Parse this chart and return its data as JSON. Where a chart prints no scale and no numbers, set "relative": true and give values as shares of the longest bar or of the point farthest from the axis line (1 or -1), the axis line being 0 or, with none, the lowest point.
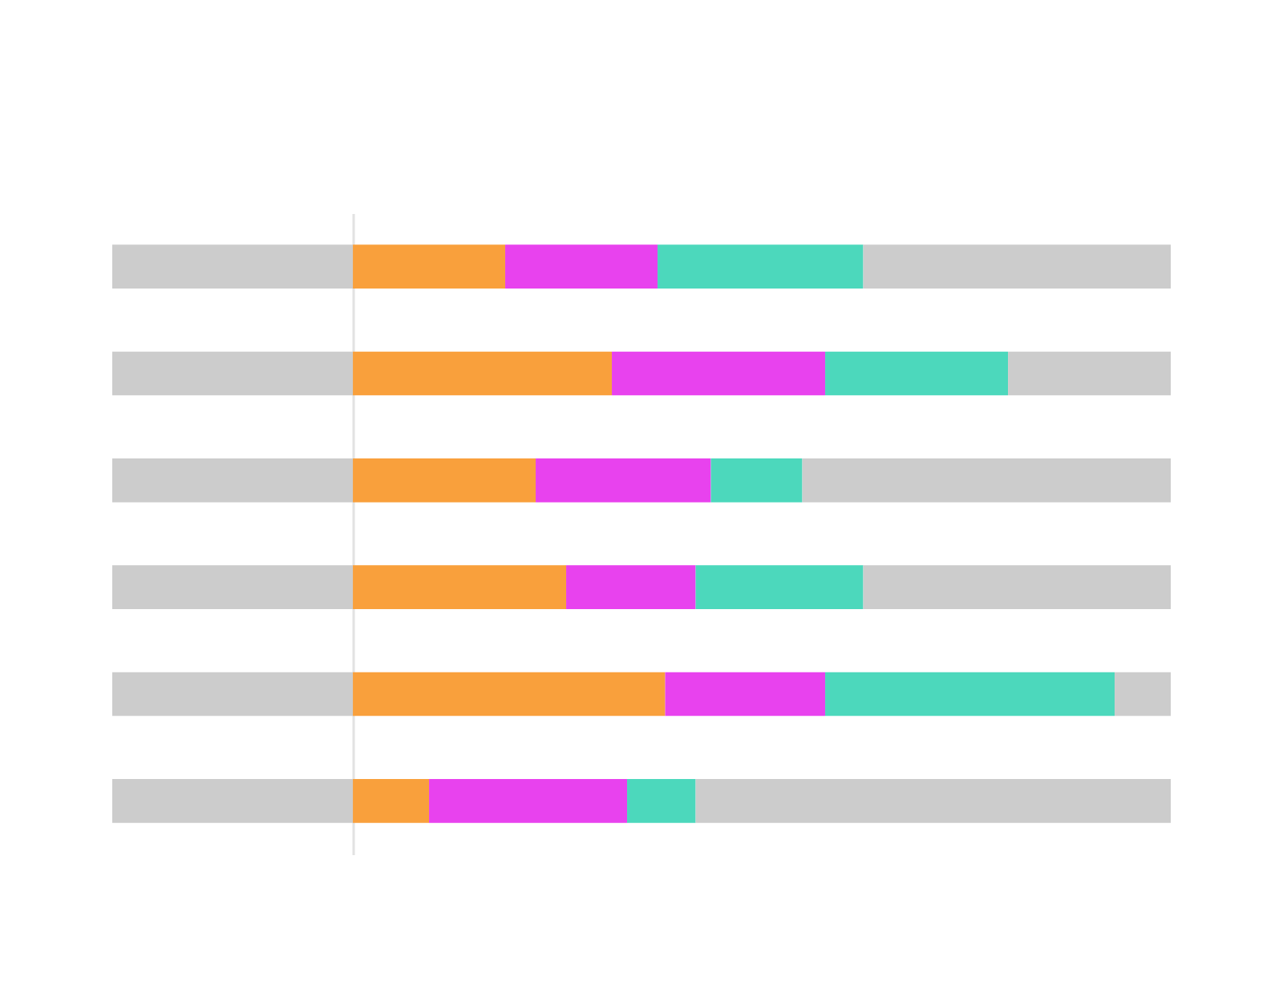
{
  "chart_data": {
    "type": "bar",
    "orientation": "horizontal",
    "stacked": true,
    "relative": true,
    "categories": [
      null,
      null,
      null,
      null,
      null,
      null
    ],
    "series": [
      {
        "color": "#f9a03c",
        "values": [
          0.2,
          0.34,
          0.24,
          0.28,
          0.41,
          0.1
        ]
      },
      {
        "color": "#e842ee",
        "values": [
          0.2,
          0.28,
          0.23,
          0.17,
          0.21,
          0.26
        ]
      },
      {
        "color": "#4cd8bc",
        "values": [
          0.27,
          0.24,
          0.12,
          0.22,
          0.38,
          0.09
        ]
      }
    ]
  }
}
